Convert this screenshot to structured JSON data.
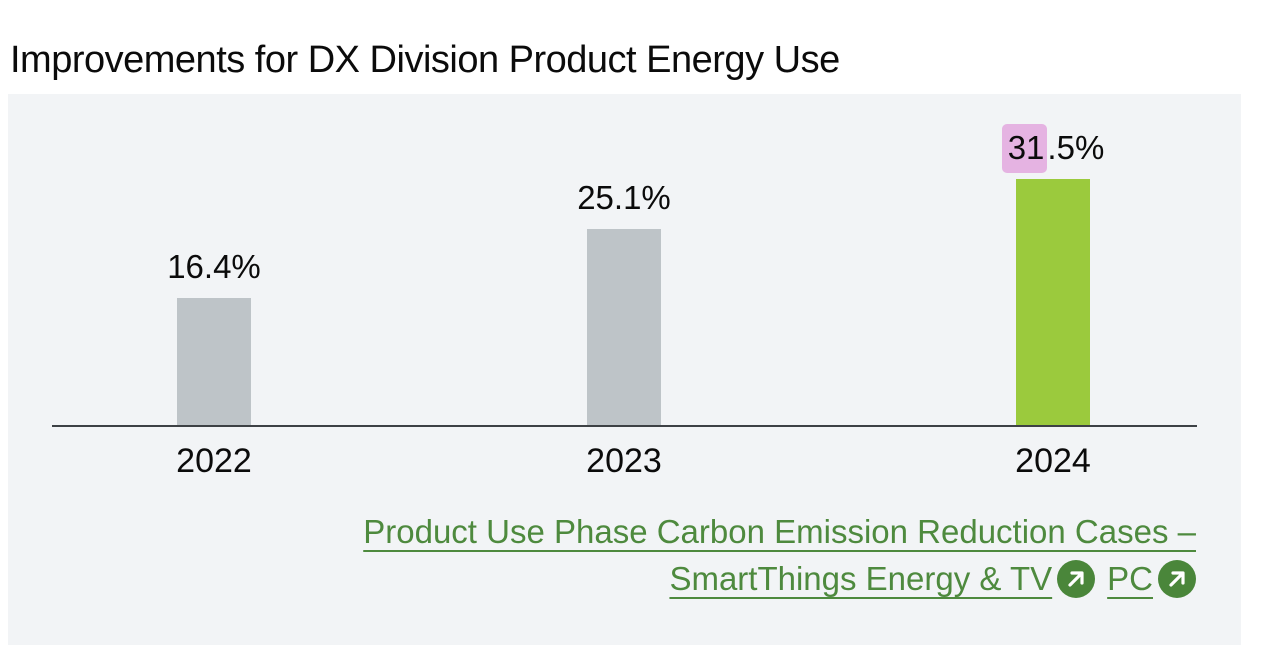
{
  "page": {
    "title": "Improvements for DX Division Product Energy Use"
  },
  "chart_data": {
    "type": "bar",
    "title": "Improvements for DX Division Product Energy Use",
    "categories": [
      "2022",
      "2023",
      "2024"
    ],
    "values": [
      16.4,
      25.1,
      31.5
    ],
    "value_labels": [
      "16.4%",
      "25.1%",
      "31.5%"
    ],
    "unit": "%",
    "ylim": [
      0,
      35
    ],
    "grid": false,
    "legend": "none",
    "bars": [
      {
        "year": "2022",
        "value": 16.4,
        "label": "16.4%",
        "color": "#bec4c8"
      },
      {
        "year": "2023",
        "value": 25.1,
        "label": "25.1%",
        "color": "#bec4c8"
      },
      {
        "year": "2024",
        "value": 31.5,
        "label": "31.5%",
        "label_highlight": "31",
        "label_rest": ".5%",
        "color": "#9bca3d",
        "highlight_color": "#e5b3e2"
      }
    ]
  },
  "footer_links": {
    "link1_text": "Product Use Phase Carbon Emission Reduction Cases – SmartThings Energy & TV",
    "link2_text": "PC",
    "icon": "arrow-up-right-circle-icon"
  },
  "colors": {
    "page-bg": "#ffffff",
    "panel-bg": "#f2f4f6",
    "bar-gray": "#bec4c8",
    "bar-green": "#9bca3d",
    "highlight-pink": "#e5b3e2",
    "axis-line": "#3d4145",
    "text-dark": "#0b0b0b",
    "link-green": "#4e8a3e",
    "badge-green": "#4a863a"
  }
}
